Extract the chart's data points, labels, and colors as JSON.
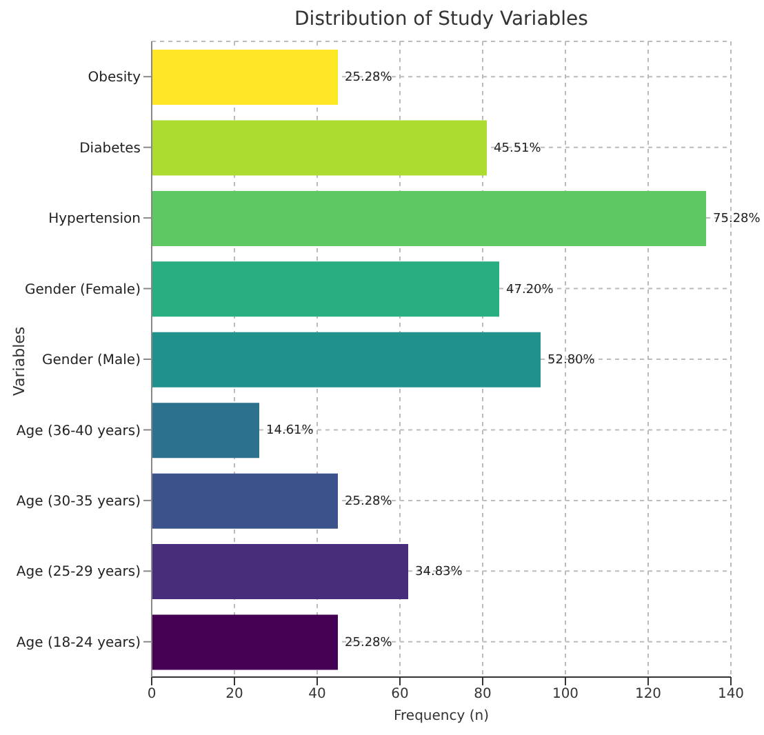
{
  "chart_data": {
    "type": "bar",
    "orientation": "horizontal",
    "title": "Distribution of Study Variables",
    "xlabel": "Frequency (n)",
    "ylabel": "Variables",
    "categories": [
      "Obesity",
      "Diabetes",
      "Hypertension",
      "Gender (Female)",
      "Gender (Male)",
      "Age (36-40 years)",
      "Age (30-35 years)",
      "Age (25-29 years)",
      "Age (18-24 years)"
    ],
    "values": [
      45,
      81,
      134,
      84,
      94,
      26,
      45,
      62,
      45
    ],
    "colors": [
      "#fde725",
      "#addc30",
      "#5ec962",
      "#28ae80",
      "#21918c",
      "#2c728e",
      "#3b528b",
      "#472d7b",
      "#440154"
    ],
    "annotations": [
      {
        "text": "25.28%",
        "x": 45,
        "y": "Obesity"
      },
      {
        "text": "45.51%",
        "x": 81,
        "y": "Diabetes"
      },
      {
        "text": "75.28%",
        "x": 134,
        "y": "Hypertension"
      },
      {
        "text": "47.20%",
        "x": 84,
        "y": "Gender (Female)"
      },
      {
        "text": "52.80%",
        "x": 94,
        "y": "Gender (Male)"
      },
      {
        "text": "14.61%",
        "x": 26,
        "y": "Age (36-40 years)"
      },
      {
        "text": "25.28%",
        "x": 45,
        "y": "Age (30-35 years)"
      },
      {
        "text": "34.83%",
        "x": 62,
        "y": "Age (25-29 years)"
      },
      {
        "text": "25.28%",
        "x": 45,
        "y": "Age (18-24 years)"
      }
    ],
    "xlim": [
      0,
      140
    ],
    "xticks": [
      0,
      20,
      40,
      60,
      80,
      100,
      120,
      140
    ],
    "grid": true
  }
}
